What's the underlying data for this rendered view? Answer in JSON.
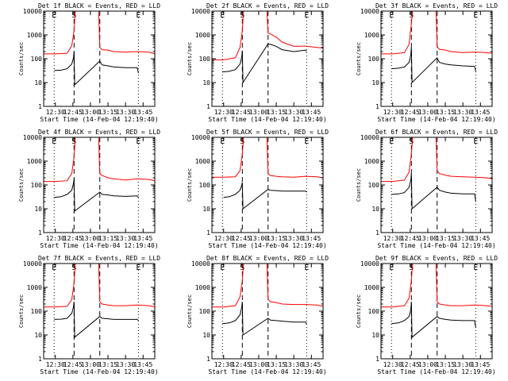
{
  "figure": {
    "y_axis_label": "Counts/sec",
    "x_axis_label": "Start Time (14-Feb-04 12:19:40)",
    "x_tick_labels": [
      "12:30",
      "12:45",
      "13:00",
      "13:15",
      "13:30",
      "13:45"
    ],
    "y_tick_labels": [
      "1",
      "10",
      "100",
      "1000",
      "10000"
    ],
    "marker_labels": {
      "e": "E",
      "s": "S"
    },
    "colors": {
      "events": "#000000",
      "lld": "#ff0000",
      "axes": "#000000",
      "background": "#ffffff"
    }
  },
  "chart_data": [
    {
      "type": "line",
      "title": "Det 1f BLACK = Events, RED = LLD",
      "xlabel": "Start Time (14-Feb-04 12:19:40)",
      "ylabel": "Counts/sec",
      "y_scale": "log",
      "ylim": [
        1,
        10000
      ],
      "xlim": [
        "12:20",
        "13:55"
      ],
      "markers": {
        "e_dotted": [
          "12:29",
          "13:41"
        ],
        "s_dashed": [
          "12:46",
          "13:08"
        ]
      },
      "series": [
        {
          "name": "LLD",
          "color": "#ff0000",
          "x": [
            "12:20",
            "12:30",
            "12:40",
            "12:44",
            "12:46",
            "12:47",
            "13:07",
            "13:08",
            "13:10",
            "13:15",
            "13:20",
            "13:30",
            "13:40",
            "13:50",
            "13:55"
          ],
          "values": [
            160,
            160,
            170,
            350,
            1500,
            10000,
            10000,
            300,
            240,
            230,
            200,
            190,
            200,
            190,
            160
          ]
        },
        {
          "name": "Events",
          "color": "#000000",
          "x": [
            "12:29",
            "12:35",
            "12:40",
            "12:44",
            "12:45.5",
            "12:46",
            "12:46.5",
            "13:08",
            "13:10",
            "13:15",
            "13:20",
            "13:30",
            "13:40",
            "13:41"
          ],
          "values": [
            32,
            33,
            38,
            60,
            110,
            200,
            8,
            80,
            55,
            50,
            45,
            42,
            42,
            25
          ]
        }
      ]
    },
    {
      "type": "line",
      "title": "Det 2f BLACK = Events, RED = LLD",
      "xlabel": "Start Time (14-Feb-04 12:19:40)",
      "ylabel": "Counts/sec",
      "y_scale": "log",
      "ylim": [
        1,
        10000
      ],
      "xlim": [
        "12:20",
        "13:55"
      ],
      "markers": {
        "e_dotted": [
          "12:29",
          "13:41"
        ],
        "s_dashed": [
          "12:46",
          "13:08"
        ]
      },
      "series": [
        {
          "name": "LLD",
          "color": "#ff0000",
          "x": [
            "12:20",
            "12:30",
            "12:40",
            "12:44",
            "12:46",
            "12:47",
            "13:07",
            "13:08",
            "13:10",
            "13:15",
            "13:20",
            "13:30",
            "13:40",
            "13:50",
            "13:55"
          ],
          "values": [
            90,
            90,
            110,
            300,
            1500,
            10000,
            10000,
            1200,
            1100,
            800,
            500,
            330,
            340,
            300,
            280
          ]
        },
        {
          "name": "Events",
          "color": "#000000",
          "x": [
            "12:29",
            "12:35",
            "12:40",
            "12:44",
            "12:45.5",
            "12:46",
            "12:46.5",
            "13:08",
            "13:10",
            "13:15",
            "13:20",
            "13:30",
            "13:40",
            "13:41"
          ],
          "values": [
            28,
            30,
            35,
            60,
            120,
            220,
            10,
            420,
            400,
            330,
            240,
            200,
            230,
            200
          ]
        }
      ]
    },
    {
      "type": "line",
      "title": "Det 3f BLACK = Events, RED = LLD",
      "xlabel": "Start Time (14-Feb-04 12:19:40)",
      "ylabel": "Counts/sec",
      "y_scale": "log",
      "ylim": [
        1,
        10000
      ],
      "xlim": [
        "12:20",
        "13:55"
      ],
      "markers": {
        "e_dotted": [
          "12:29",
          "13:41"
        ],
        "s_dashed": [
          "12:46",
          "13:08"
        ]
      },
      "series": [
        {
          "name": "LLD",
          "color": "#ff0000",
          "x": [
            "12:20",
            "12:30",
            "12:40",
            "12:44",
            "12:46",
            "12:47",
            "13:07",
            "13:08",
            "13:10",
            "13:15",
            "13:20",
            "13:30",
            "13:40",
            "13:50",
            "13:55"
          ],
          "values": [
            160,
            160,
            180,
            400,
            3000,
            10000,
            10000,
            320,
            250,
            230,
            200,
            180,
            190,
            180,
            170
          ]
        },
        {
          "name": "Events",
          "color": "#000000",
          "x": [
            "12:29",
            "12:35",
            "12:40",
            "12:44",
            "12:45.5",
            "12:46",
            "12:46.5",
            "13:08",
            "13:10",
            "13:15",
            "13:20",
            "13:30",
            "13:40",
            "13:41"
          ],
          "values": [
            38,
            40,
            45,
            70,
            150,
            300,
            10,
            110,
            70,
            60,
            55,
            50,
            48,
            30
          ]
        }
      ]
    },
    {
      "type": "line",
      "title": "Det 4f BLACK = Events, RED = LLD",
      "xlabel": "Start Time (14-Feb-04 12:19:40)",
      "ylabel": "Counts/sec",
      "y_scale": "log",
      "ylim": [
        1,
        10000
      ],
      "xlim": [
        "12:20",
        "13:55"
      ],
      "markers": {
        "e_dotted": [
          "12:29",
          "13:41"
        ],
        "s_dashed": [
          "12:46",
          "13:08"
        ]
      },
      "series": [
        {
          "name": "LLD",
          "color": "#ff0000",
          "x": [
            "12:20",
            "12:30",
            "12:40",
            "12:44",
            "12:46",
            "12:47",
            "13:07",
            "13:08",
            "13:10",
            "13:15",
            "13:20",
            "13:30",
            "13:40",
            "13:50",
            "13:55"
          ],
          "values": [
            140,
            140,
            150,
            300,
            1500,
            10000,
            10000,
            300,
            250,
            200,
            180,
            160,
            180,
            170,
            150
          ]
        },
        {
          "name": "Events",
          "color": "#000000",
          "x": [
            "12:29",
            "12:35",
            "12:40",
            "12:44",
            "12:45.5",
            "12:46",
            "12:46.5",
            "13:08",
            "13:10",
            "13:15",
            "13:20",
            "13:30",
            "13:40",
            "13:41"
          ],
          "values": [
            30,
            32,
            40,
            60,
            120,
            180,
            8,
            50,
            40,
            38,
            35,
            33,
            35,
            30
          ]
        }
      ]
    },
    {
      "type": "line",
      "title": "Det 5f BLACK = Events, RED = LLD",
      "xlabel": "Start Time (14-Feb-04 12:19:40)",
      "ylabel": "Counts/sec",
      "y_scale": "log",
      "ylim": [
        1,
        10000
      ],
      "xlim": [
        "12:20",
        "13:55"
      ],
      "markers": {
        "e_dotted": [
          "12:29",
          "13:41"
        ],
        "s_dashed": [
          "12:46",
          "13:08"
        ]
      },
      "series": [
        {
          "name": "LLD",
          "color": "#ff0000",
          "x": [
            "12:20",
            "12:30",
            "12:40",
            "12:44",
            "12:46",
            "12:47",
            "13:07",
            "13:08",
            "13:10",
            "13:15",
            "13:20",
            "13:30",
            "13:40",
            "13:50",
            "13:55"
          ],
          "values": [
            210,
            210,
            220,
            400,
            2000,
            10000,
            10000,
            300,
            250,
            230,
            220,
            210,
            230,
            220,
            200
          ]
        },
        {
          "name": "Events",
          "color": "#000000",
          "x": [
            "12:30",
            "12:35",
            "12:40",
            "12:44",
            "12:45.5",
            "12:46",
            "12:46.5",
            "13:08",
            "13:10",
            "13:15",
            "13:20",
            "13:30",
            "13:40",
            "13:41"
          ],
          "values": [
            30,
            32,
            40,
            60,
            100,
            130,
            10,
            65,
            60,
            58,
            55,
            55,
            55,
            50
          ]
        }
      ]
    },
    {
      "type": "line",
      "title": "Det 6f BLACK = Events, RED = LLD",
      "xlabel": "Start Time (14-Feb-04 12:19:40)",
      "ylabel": "Counts/sec",
      "y_scale": "log",
      "ylim": [
        1,
        10000
      ],
      "xlim": [
        "12:20",
        "13:55"
      ],
      "markers": {
        "e_dotted": [
          "12:29",
          "13:41"
        ],
        "s_dashed": [
          "12:46",
          "13:08"
        ]
      },
      "series": [
        {
          "name": "LLD",
          "color": "#ff0000",
          "x": [
            "12:20",
            "12:30",
            "12:40",
            "12:44",
            "12:46",
            "12:47",
            "13:07",
            "13:08",
            "13:10",
            "13:15",
            "13:20",
            "13:30",
            "13:40",
            "13:50",
            "13:55"
          ],
          "values": [
            140,
            140,
            160,
            350,
            2000,
            10000,
            10000,
            400,
            300,
            260,
            230,
            220,
            210,
            200,
            180
          ]
        },
        {
          "name": "Events",
          "color": "#000000",
          "x": [
            "12:29",
            "12:35",
            "12:40",
            "12:44",
            "12:45.5",
            "12:46",
            "12:46.5",
            "13:08",
            "13:10",
            "13:15",
            "13:20",
            "13:30",
            "13:40",
            "13:41"
          ],
          "values": [
            40,
            42,
            48,
            80,
            160,
            300,
            10,
            80,
            60,
            50,
            45,
            42,
            42,
            20
          ]
        }
      ]
    },
    {
      "type": "line",
      "title": "Det 7f BLACK = Events, RED = LLD",
      "xlabel": "Start Time (14-Feb-04 12:19:40)",
      "ylabel": "Counts/sec",
      "y_scale": "log",
      "ylim": [
        1,
        10000
      ],
      "xlim": [
        "12:20",
        "13:55"
      ],
      "markers": {
        "e_dotted": [
          "12:29",
          "13:41"
        ],
        "s_dashed": [
          "12:46",
          "13:08"
        ]
      },
      "series": [
        {
          "name": "LLD",
          "color": "#ff0000",
          "x": [
            "12:20",
            "12:30",
            "12:40",
            "12:44",
            "12:46",
            "12:47",
            "13:07",
            "13:08",
            "13:10",
            "13:15",
            "13:20",
            "13:30",
            "13:40",
            "13:50",
            "13:55"
          ],
          "values": [
            150,
            150,
            160,
            300,
            1500,
            10000,
            10000,
            250,
            200,
            180,
            170,
            170,
            180,
            170,
            150
          ]
        },
        {
          "name": "Events",
          "color": "#000000",
          "x": [
            "12:29",
            "12:35",
            "12:40",
            "12:44",
            "12:45.5",
            "12:46",
            "12:46.5",
            "13:08",
            "13:10",
            "13:15",
            "13:20",
            "13:30",
            "13:40",
            "13:41"
          ],
          "values": [
            45,
            46,
            50,
            80,
            150,
            250,
            8,
            60,
            50,
            48,
            45,
            45,
            45,
            40
          ]
        }
      ]
    },
    {
      "type": "line",
      "title": "Det 8f BLACK = Events, RED = LLD",
      "xlabel": "Start Time (14-Feb-04 12:19:40)",
      "ylabel": "Counts/sec",
      "y_scale": "log",
      "ylim": [
        1,
        10000
      ],
      "xlim": [
        "12:20",
        "13:55"
      ],
      "markers": {
        "e_dotted": [
          "12:29",
          "13:41"
        ],
        "s_dashed": [
          "12:46",
          "13:08"
        ]
      },
      "series": [
        {
          "name": "LLD",
          "color": "#ff0000",
          "x": [
            "12:20",
            "12:30",
            "12:40",
            "12:44",
            "12:46",
            "12:47",
            "13:07",
            "13:08",
            "13:10",
            "13:15",
            "13:20",
            "13:30",
            "13:40",
            "13:50",
            "13:55"
          ],
          "values": [
            150,
            150,
            170,
            400,
            2000,
            10000,
            10000,
            320,
            250,
            230,
            200,
            190,
            190,
            180,
            160
          ]
        },
        {
          "name": "Events",
          "color": "#000000",
          "x": [
            "12:29",
            "12:35",
            "12:40",
            "12:44",
            "12:45.5",
            "12:46",
            "12:46.5",
            "13:08",
            "13:10",
            "13:15",
            "13:20",
            "13:30",
            "13:40",
            "13:41"
          ],
          "values": [
            30,
            32,
            40,
            70,
            150,
            250,
            10,
            50,
            42,
            40,
            38,
            35,
            35,
            28
          ]
        }
      ]
    },
    {
      "type": "line",
      "title": "Det 9f BLACK = Events, RED = LLD",
      "xlabel": "Start Time (14-Feb-04 12:19:40)",
      "ylabel": "Counts/sec",
      "y_scale": "log",
      "ylim": [
        1,
        10000
      ],
      "xlim": [
        "12:20",
        "13:55"
      ],
      "markers": {
        "e_dotted": [
          "12:29",
          "13:41"
        ],
        "s_dashed": [
          "12:46",
          "13:08"
        ]
      },
      "series": [
        {
          "name": "LLD",
          "color": "#ff0000",
          "x": [
            "12:20",
            "12:30",
            "12:40",
            "12:44",
            "12:46",
            "12:47",
            "13:07",
            "13:08",
            "13:10",
            "13:15",
            "13:20",
            "13:30",
            "13:40",
            "13:50",
            "13:55"
          ],
          "values": [
            150,
            150,
            170,
            350,
            2000,
            10000,
            10000,
            250,
            200,
            180,
            170,
            170,
            180,
            170,
            160
          ]
        },
        {
          "name": "Events",
          "color": "#000000",
          "x": [
            "12:29",
            "12:35",
            "12:40",
            "12:44",
            "12:45.5",
            "12:46",
            "12:46.5",
            "13:08",
            "13:10",
            "13:15",
            "13:20",
            "13:30",
            "13:40",
            "13:41"
          ],
          "values": [
            30,
            32,
            40,
            60,
            120,
            250,
            8,
            60,
            50,
            45,
            42,
            40,
            40,
            20
          ]
        }
      ]
    }
  ]
}
